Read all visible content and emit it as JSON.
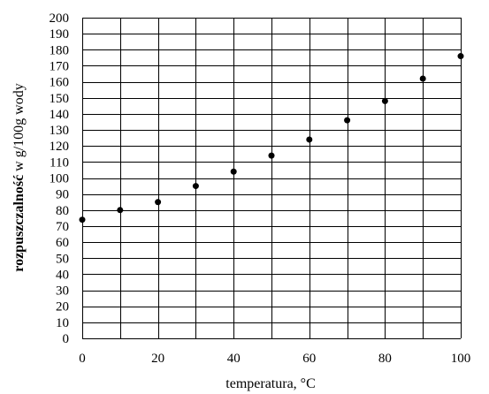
{
  "chart_data": {
    "type": "scatter",
    "title": "",
    "xlabel": "temperatura, °C",
    "ylabel_bold": "rozpuszczalność",
    "ylabel_rest": " w g/100g wody",
    "xlim": [
      0,
      100
    ],
    "ylim": [
      0,
      200
    ],
    "x_ticks": [
      0,
      20,
      40,
      60,
      80,
      100
    ],
    "x_gridlines": [
      0,
      10,
      20,
      30,
      40,
      50,
      60,
      70,
      80,
      90,
      100
    ],
    "y_ticks": [
      0,
      10,
      20,
      30,
      40,
      50,
      60,
      70,
      80,
      90,
      100,
      110,
      120,
      130,
      140,
      150,
      160,
      170,
      180,
      190,
      200
    ],
    "grid": true,
    "legend": "none",
    "series": [
      {
        "x": [
          0,
          10,
          20,
          30,
          40,
          50,
          60,
          70,
          80,
          90,
          100
        ],
        "y": [
          74,
          80,
          85,
          95,
          104,
          114,
          124,
          136,
          148,
          162,
          176
        ]
      }
    ],
    "colors": {
      "grid": "#000000",
      "marker": "#000000",
      "text": "#000000"
    }
  }
}
